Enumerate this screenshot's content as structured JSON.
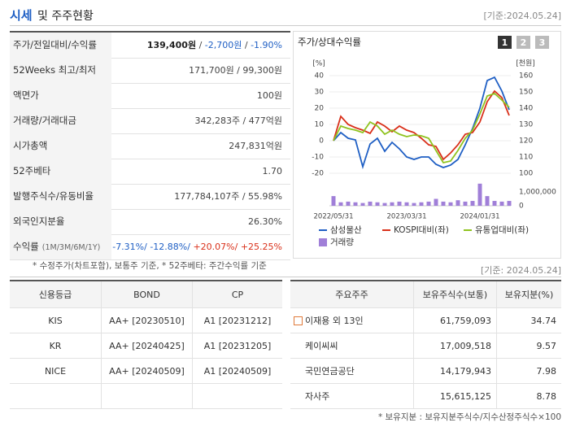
{
  "header": {
    "title": "시세",
    "title_rest": "및 주주현황",
    "date": "[기준:2024.05.24]"
  },
  "quote_table": {
    "rows": [
      {
        "label": "주가/전일대비/수익률",
        "value": [
          {
            "text": "139,400원",
            "bold": true
          },
          " / ",
          {
            "text": "-2,700원",
            "color": "#1f5fc4"
          },
          " / ",
          {
            "text": "-1.90%",
            "color": "#1f5fc4"
          }
        ]
      },
      {
        "label": "52Weeks 최고/최저",
        "value": [
          "171,700원 / 99,300원"
        ]
      },
      {
        "label": "액면가",
        "value": [
          "100원"
        ]
      },
      {
        "label": "거래량/거래대금",
        "value": [
          "342,283주 / 477억원"
        ]
      },
      {
        "label": "시가총액",
        "value": [
          "247,831억원"
        ]
      },
      {
        "label": "52주베타",
        "value": [
          "1.70"
        ]
      },
      {
        "label": "발행주식수/유동비율",
        "value": [
          "177,784,107주 / 55.98%"
        ]
      },
      {
        "label": "외국인지분율",
        "value": [
          "26.30%"
        ]
      },
      {
        "label": "수익률",
        "label_note": "(1M/3M/6M/1Y)",
        "value": [
          {
            "text": "-7.31%/",
            "color": "#1f5fc4"
          },
          {
            "text": " -12.88%/",
            "color": "#1f5fc4"
          },
          {
            "text": " +20.07%/",
            "color": "#d9301a"
          },
          {
            "text": " +25.25%",
            "color": "#d9301a"
          }
        ]
      }
    ]
  },
  "quote_note": "* 수정주가(차트포함), 보통주 기준, * 52주베타: 주간수익률 기준",
  "chart_tabs": [
    "1",
    "2",
    "3"
  ],
  "chart_data": {
    "type": "line",
    "title": "주가/상대수익률",
    "y_label": "[%]",
    "y2_label": "[천원]",
    "categories": [
      "2022/05/31",
      null,
      null,
      null,
      null,
      null,
      null,
      null,
      null,
      null,
      "2023/03/31",
      null,
      null,
      null,
      null,
      null,
      null,
      null,
      null,
      null,
      "2024/01/31",
      null,
      null,
      null,
      null
    ],
    "ylim": [
      -20,
      40
    ],
    "yticks": [
      -20,
      -10,
      0,
      10,
      20,
      30,
      40
    ],
    "y2lim": [
      100,
      160
    ],
    "y2ticks": [
      100,
      110,
      120,
      130,
      140,
      150,
      160
    ],
    "y3lim": [
      0,
      2000000
    ],
    "y3ticks": [
      0,
      {
        "value": 1000000,
        "label": "1,000,000"
      }
    ],
    "series": [
      {
        "name": "삼성물산",
        "color": "#1f5fc4",
        "axis": "y2",
        "values": [
          120,
          125,
          121.5,
          120.5,
          104,
          118,
          121.5,
          113.5,
          119,
          115,
          110,
          108.5,
          110,
          110,
          105.5,
          103.5,
          105,
          108.5,
          117.5,
          127.5,
          140,
          157,
          159,
          150.5,
          139
        ]
      },
      {
        "name": "KOSPI대비(좌)",
        "color": "#d9301a",
        "values": [
          0,
          15,
          10,
          8,
          6.5,
          4.5,
          11.5,
          9,
          5.5,
          9,
          6.5,
          5,
          1.5,
          -2.5,
          -3.5,
          -11.5,
          -7.5,
          -2.5,
          4,
          5,
          11.5,
          24,
          30.5,
          26.5,
          15.5
        ]
      },
      {
        "name": "유통업대비(좌)",
        "color": "#8fc31f",
        "values": [
          0,
          9,
          7.5,
          6.5,
          5,
          11.5,
          9,
          4,
          6.5,
          4,
          2.5,
          3.5,
          3,
          1.5,
          -6,
          -13.5,
          -12.5,
          -6,
          1.5,
          6.5,
          16.5,
          27.5,
          29,
          25,
          20.5
        ]
      },
      {
        "name": "거래량",
        "color": "#a07fd8",
        "type": "bar",
        "axis": "y3",
        "values": [
          700000,
          250000,
          300000,
          250000,
          200000,
          300000,
          250000,
          200000,
          250000,
          300000,
          250000,
          200000,
          250000,
          300000,
          500000,
          300000,
          250000,
          400000,
          300000,
          350000,
          1600000,
          700000,
          350000,
          300000,
          350000
        ]
      }
    ]
  },
  "credit_table": {
    "headers": [
      "신용등급",
      "BOND",
      "CP"
    ],
    "rows": [
      [
        "KIS",
        "AA+ [20230510]",
        "A1 [20231212]"
      ],
      [
        "KR",
        "AA+ [20240425]",
        "A1 [20231205]"
      ],
      [
        "NICE",
        "AA+ [20240509]",
        "A1 [20240509]"
      ]
    ]
  },
  "holder_date": "[기준: 2024.05.24]",
  "holder_table": {
    "headers": [
      "주요주주",
      "보유주식수(보통)",
      "보유지분(%)"
    ],
    "rows": [
      [
        "이재용 외 13인",
        "61,759,093",
        "34.74"
      ],
      [
        "케이씨씨",
        "17,009,518",
        "9.57"
      ],
      [
        "국민연금공단",
        "14,179,943",
        "7.98"
      ],
      [
        "자사주",
        "15,615,125",
        "8.78"
      ]
    ]
  },
  "holder_note": "* 보유지분 : 보유지분주식수/지수산정주식수×100"
}
